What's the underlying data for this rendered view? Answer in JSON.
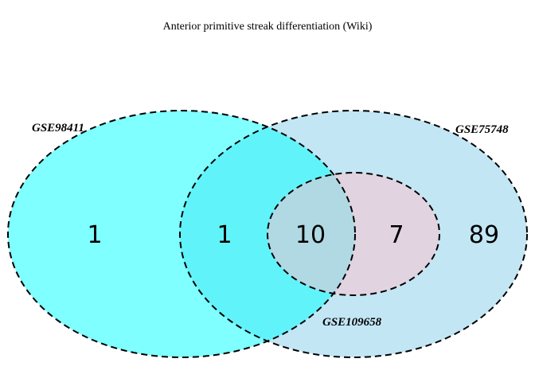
{
  "title": "Anterior primitive streak differentiation (Wiki)",
  "sets": [
    {
      "name": "GSE98411",
      "color": "#00ffff"
    },
    {
      "name": "GSE75748",
      "color": "#87ceeb"
    },
    {
      "name": "GSE109658",
      "color": "#ffc0cb"
    }
  ],
  "regions": {
    "GSE98411_only": "1",
    "GSE98411_GSE75748": "1",
    "all_three": "10",
    "GSE75748_GSE109658": "7",
    "GSE75748_only": "89"
  }
}
